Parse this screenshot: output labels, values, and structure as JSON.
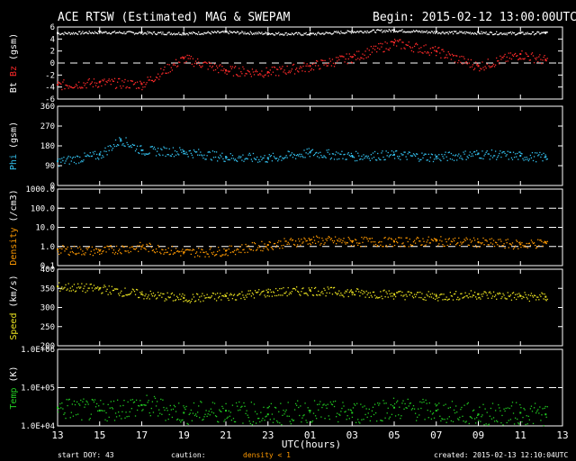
{
  "header": {
    "title": "ACE RTSW (Estimated) MAG & SWEPAM",
    "begin": "Begin: 2015-02-12 13:00:00UTC"
  },
  "footer": {
    "start_doy": "start DOY:  43",
    "caution": "caution:",
    "density_note": "density < 1",
    "created": "created: 2015-02-13 12:10:04UTC"
  },
  "colors": {
    "background": "#000000",
    "axes": "#ffffff",
    "bt": "#ffffff",
    "bz": "#ff2a2a",
    "phi": "#33c0ee",
    "density": "#ff9900",
    "speed": "#e8e020",
    "temp": "#22cc22",
    "caution_note": "#ff9900"
  },
  "chart_data": [
    {
      "type": "scatter",
      "panel": "magnetic-field",
      "ylabel_parts": [
        "Bt",
        "Bz",
        "(gsm)"
      ],
      "ylim": [
        -6,
        6
      ],
      "yticks": [
        6,
        4,
        2,
        0,
        -2,
        -4,
        -6
      ],
      "dashed_lines": [
        0
      ],
      "x_hours": [
        0,
        2,
        4,
        6,
        8,
        10,
        12,
        14,
        16,
        18,
        20,
        22,
        23.2
      ],
      "series": [
        {
          "name": "Bt",
          "values": [
            5.0,
            5.2,
            5.1,
            5.0,
            5.2,
            5.0,
            4.9,
            5.3,
            5.5,
            5.2,
            5.1,
            5.0,
            5.1
          ]
        },
        {
          "name": "Bz",
          "values": [
            -3.6,
            -3.2,
            -3.5,
            0.8,
            -1.2,
            -1.5,
            -0.5,
            1.0,
            3.4,
            2.0,
            -0.5,
            1.5,
            0.5
          ]
        }
      ]
    },
    {
      "type": "scatter",
      "panel": "phi",
      "ylabel": "Phi (gsm)",
      "ylim": [
        0,
        360
      ],
      "yticks": [
        360,
        270,
        180,
        90,
        0
      ],
      "x_hours": [
        0,
        2,
        3,
        4,
        6,
        8,
        10,
        12,
        14,
        16,
        18,
        20,
        22,
        23.2
      ],
      "series": [
        {
          "name": "Phi",
          "values": [
            110,
            140,
            210,
            160,
            155,
            130,
            125,
            150,
            135,
            140,
            130,
            145,
            135,
            130
          ]
        }
      ]
    },
    {
      "type": "scatter",
      "panel": "density",
      "ylabel": "Density (/cm3)",
      "yscale": "log",
      "ylim": [
        0.1,
        1000
      ],
      "yticks": [
        "1000.0",
        "100.0",
        "10.0",
        "1.0",
        "0.1"
      ],
      "dashed_lines": [
        100,
        10,
        1
      ],
      "x_hours": [
        0,
        2,
        4,
        6,
        8,
        10,
        12,
        14,
        16,
        18,
        20,
        22,
        23.2
      ],
      "series": [
        {
          "name": "Density",
          "values": [
            0.7,
            0.6,
            1.0,
            0.5,
            0.6,
            1.2,
            2.2,
            1.9,
            1.8,
            2.0,
            1.7,
            1.3,
            1.6
          ]
        }
      ]
    },
    {
      "type": "scatter",
      "panel": "speed",
      "ylabel": "Speed (km/s)",
      "ylim": [
        200,
        400
      ],
      "yticks": [
        400,
        350,
        300,
        250,
        200
      ],
      "x_hours": [
        0,
        2,
        4,
        6,
        8,
        10,
        12,
        14,
        16,
        18,
        20,
        22,
        23.2
      ],
      "series": [
        {
          "name": "Speed",
          "values": [
            355,
            350,
            335,
            325,
            330,
            340,
            345,
            340,
            335,
            330,
            335,
            330,
            328
          ]
        }
      ]
    },
    {
      "type": "scatter",
      "panel": "temperature",
      "ylabel": "Temp (K)",
      "yscale": "log",
      "ylim": [
        10000,
        1000000
      ],
      "yticks": [
        "1.0E+06",
        "1.0E+05",
        "1.0E+04"
      ],
      "dashed_lines": [
        100000
      ],
      "x_hours": [
        0,
        2,
        4,
        6,
        8,
        10,
        12,
        14,
        16,
        18,
        20,
        22,
        23.2
      ],
      "series": [
        {
          "name": "Temp",
          "values": [
            30000,
            25000,
            35000,
            22000,
            25000,
            20000,
            25000,
            22000,
            30000,
            25000,
            20000,
            22000,
            20000
          ]
        }
      ]
    }
  ],
  "x_axis": {
    "label": "UTC(hours)",
    "ticks": [
      "13",
      "15",
      "17",
      "19",
      "21",
      "23",
      "01",
      "03",
      "05",
      "07",
      "09",
      "11",
      "13"
    ]
  }
}
